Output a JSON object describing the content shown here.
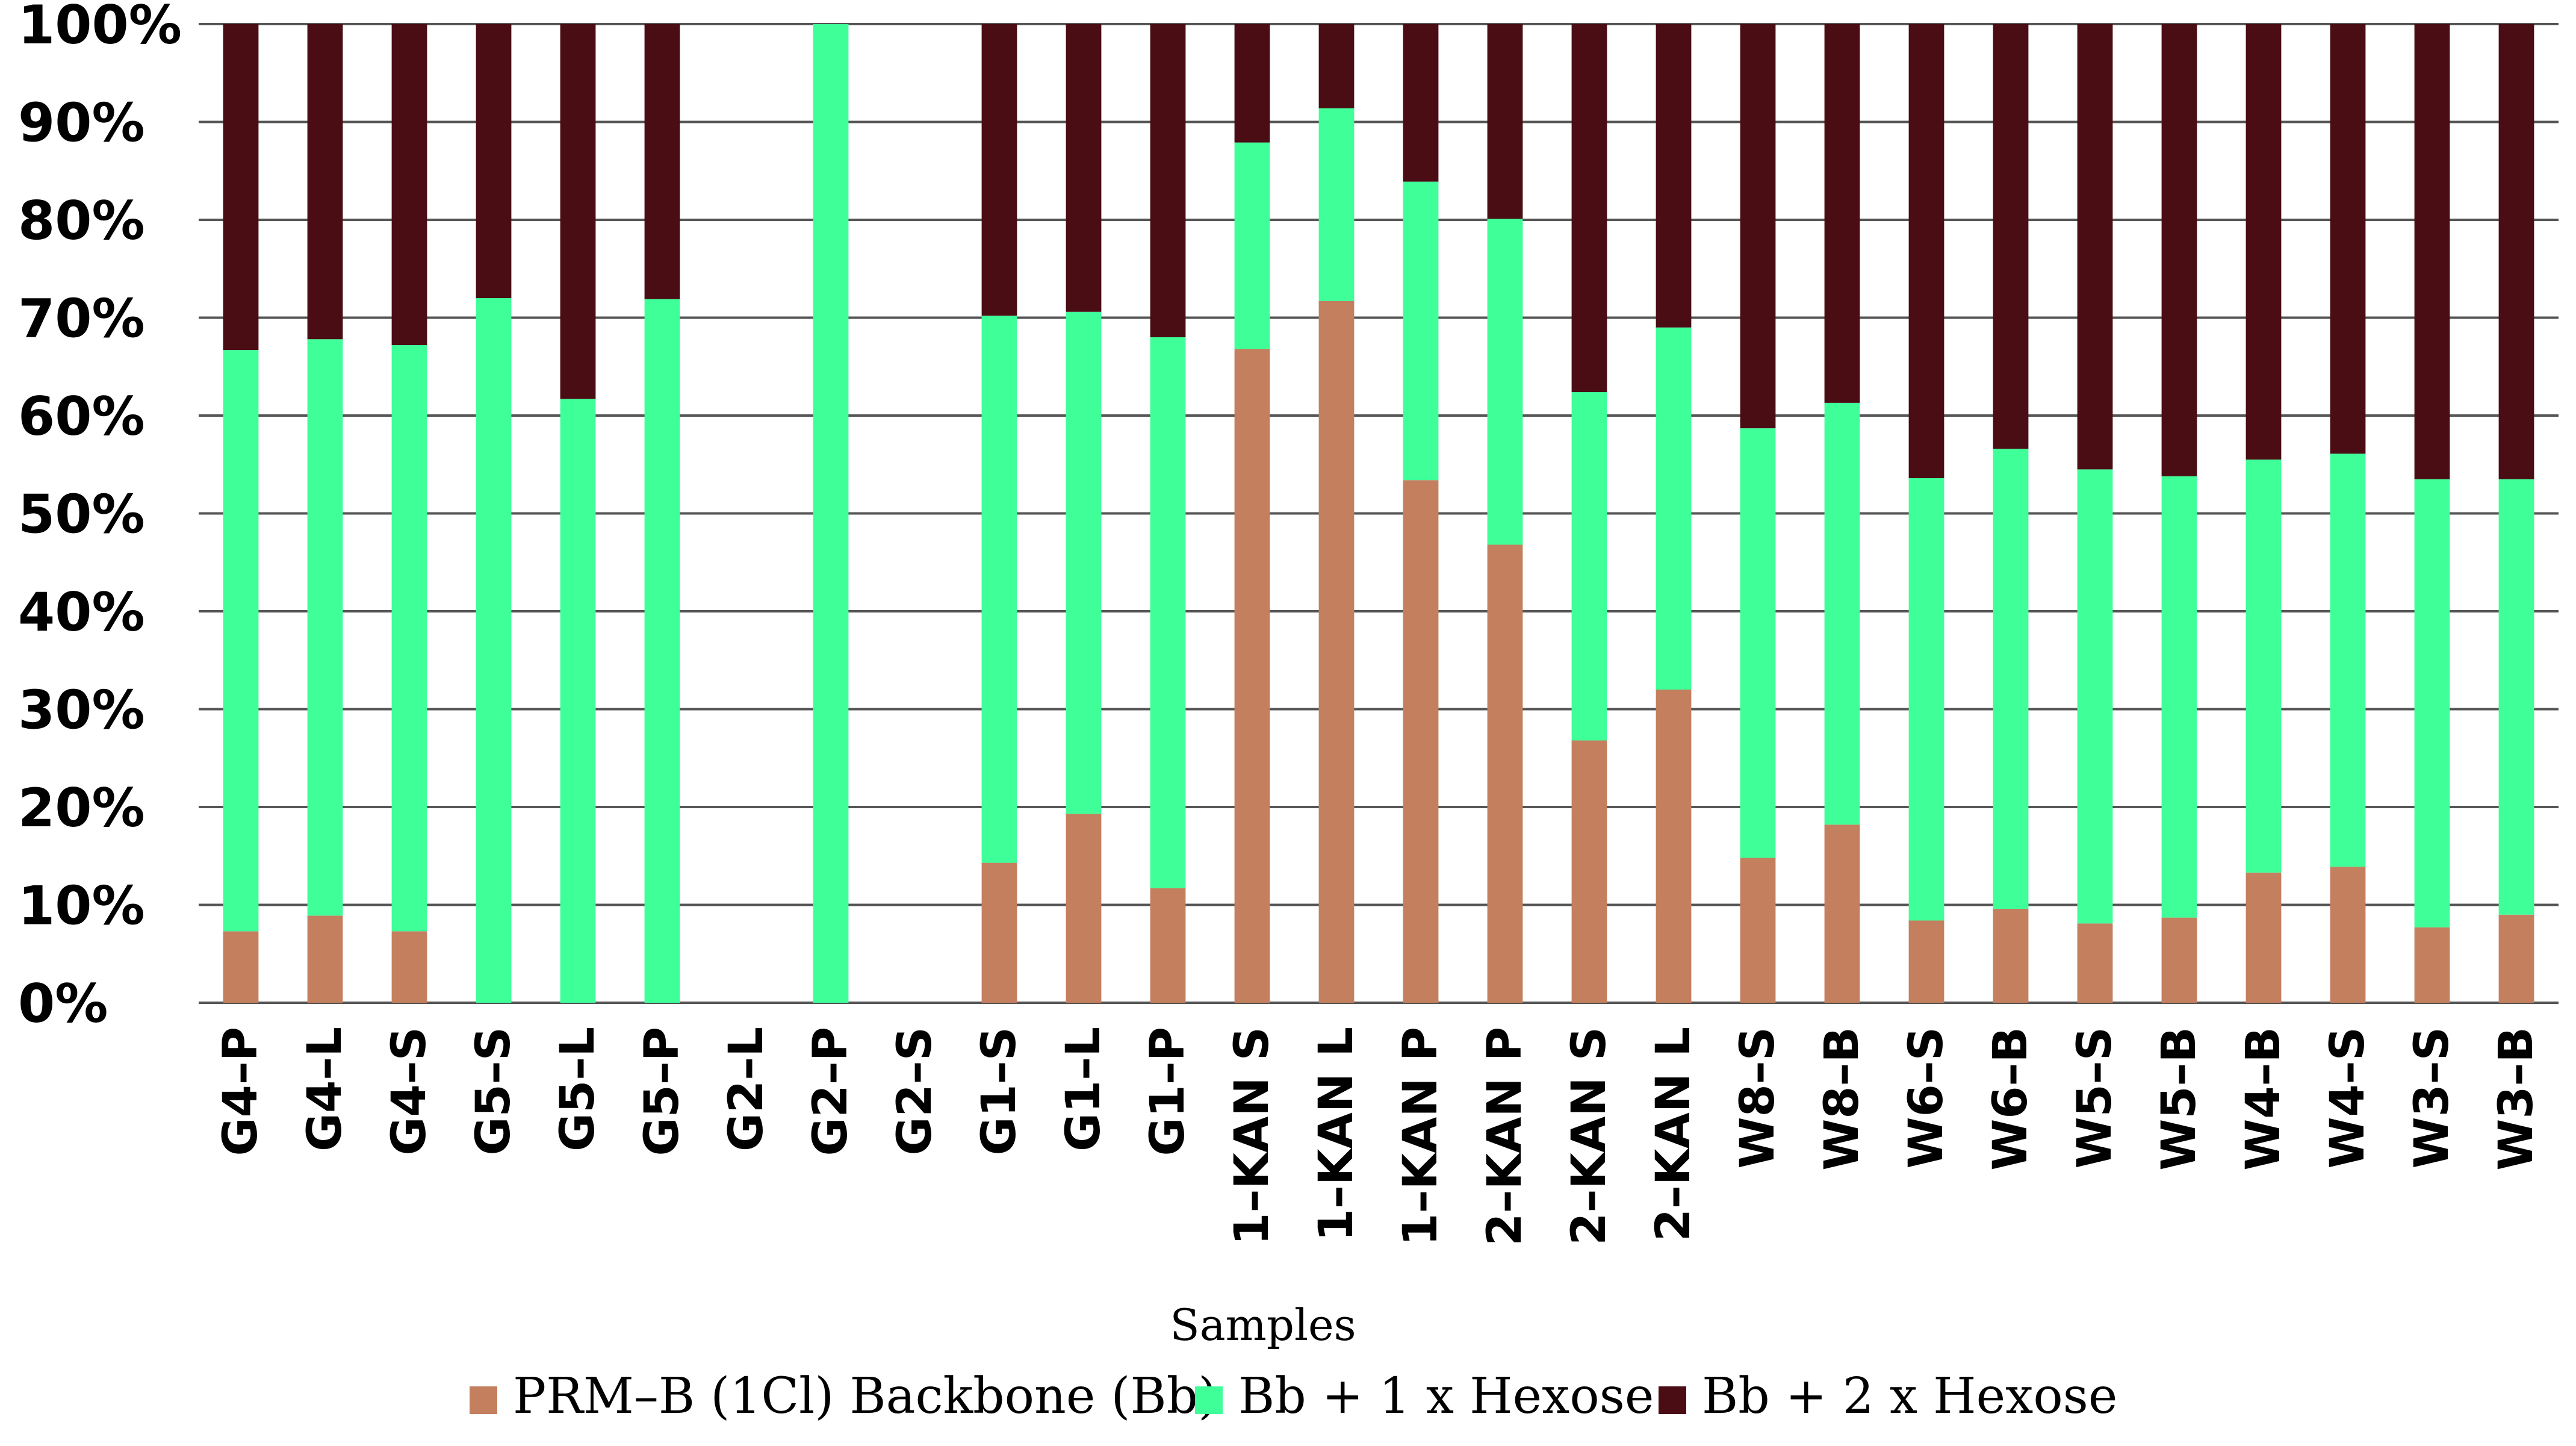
{
  "chart_data": {
    "type": "bar",
    "stacked": true,
    "percent": true,
    "title": "",
    "xlabel": "Samples",
    "ylabel": "",
    "ylim": [
      0,
      100
    ],
    "yticks": [
      "0%",
      "10%",
      "20%",
      "30%",
      "40%",
      "50%",
      "60%",
      "70%",
      "80%",
      "90%",
      "100%"
    ],
    "grid": true,
    "legend_position": "bottom",
    "categories": [
      "G4–P",
      "G4–L",
      "G4–S",
      "G5–S",
      "G5–L",
      "G5–P",
      "G2–L",
      "G2–P",
      "G2–S",
      "G1–S",
      "G1–L",
      "G1–P",
      "1–KAN S",
      "1–KAN L",
      "1–KAN P",
      "2–KAN P",
      "2–KAN S",
      "2–KAN L",
      "W8–S",
      "W8–B",
      "W6–S",
      "W6–B",
      "W5–S",
      "W5–B",
      "W4–B",
      "W4–S",
      "W3–S",
      "W3–B"
    ],
    "series": [
      {
        "name": "PRM–B (1Cl) Backbone (Bb)",
        "color": "#c47f5e",
        "values": [
          7.3,
          8.9,
          7.3,
          0,
          0,
          0,
          0,
          0,
          0,
          14.3,
          19.3,
          11.7,
          66.8,
          71.7,
          53.4,
          46.8,
          26.8,
          32.0,
          14.8,
          18.2,
          8.4,
          9.6,
          8.1,
          8.7,
          13.3,
          13.9,
          7.7,
          9.0
        ]
      },
      {
        "name": "Bb + 1 x Hexose",
        "color": "#3fff99",
        "values": [
          59.4,
          58.9,
          59.9,
          72.0,
          61.7,
          71.9,
          0,
          100,
          0,
          55.9,
          51.3,
          56.3,
          21.1,
          19.7,
          30.5,
          33.3,
          35.6,
          37.0,
          43.9,
          43.1,
          45.2,
          47.0,
          46.4,
          45.1,
          42.2,
          42.2,
          45.8,
          44.5
        ]
      },
      {
        "name": "Bb + 2 x Hexose",
        "color": "#4a0d14",
        "values": [
          33.3,
          32.2,
          32.8,
          28.0,
          38.3,
          28.1,
          0,
          0,
          0,
          29.8,
          29.4,
          32.0,
          12.1,
          8.6,
          16.1,
          19.9,
          37.6,
          31.0,
          41.3,
          38.7,
          46.4,
          43.4,
          45.5,
          46.2,
          44.5,
          43.9,
          46.5,
          46.5
        ]
      }
    ]
  }
}
